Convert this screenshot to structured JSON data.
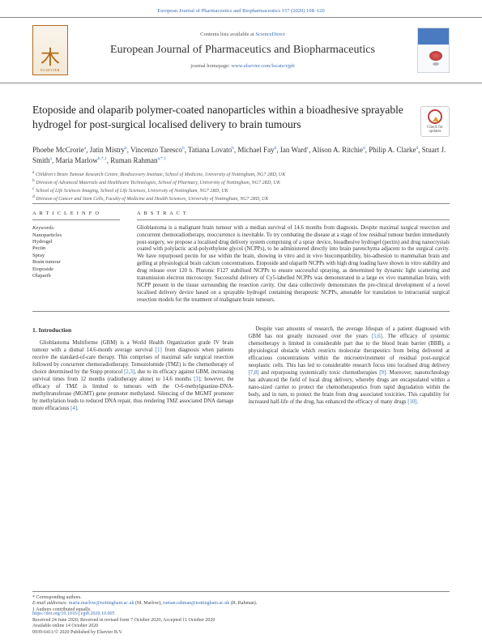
{
  "header_citation": "European Journal of Pharmaceutics and Biopharmaceutics 157 (2020) 108–120",
  "publisher_name": "ELSEVIER",
  "contents_prefix": "Contents lists available at ",
  "contents_link": "ScienceDirect",
  "journal_title": "European Journal of Pharmaceutics and Biopharmaceutics",
  "homepage_prefix": "journal homepage: ",
  "homepage_link": "www.elsevier.com/locate/ejpb",
  "updates_label": "Check for updates",
  "article_title": "Etoposide and olaparib polymer-coated nanoparticles within a bioadhesive sprayable hydrogel for post-surgical localised delivery to brain tumours",
  "authors_html": [
    {
      "name": "Phoebe McCrorie",
      "sup": "a"
    },
    {
      "name": "Jatin Mistry",
      "sup": "b"
    },
    {
      "name": "Vincenzo Taresco",
      "sup": "b"
    },
    {
      "name": "Tatiana Lovato",
      "sup": "b"
    },
    {
      "name": "Michael Fay",
      "sup": "b"
    },
    {
      "name": "Ian Ward",
      "sup": "c"
    },
    {
      "name": "Alison A. Ritchie",
      "sup": "d"
    },
    {
      "name": "Philip A. Clarke",
      "sup": "d"
    },
    {
      "name": "Stuart J. Smith",
      "sup": "a"
    },
    {
      "name": "Maria Marlow",
      "sup": "b,*,1"
    },
    {
      "name": "Ruman Rahman",
      "sup": "a,*,1"
    }
  ],
  "affiliations": [
    {
      "sup": "a",
      "text": "Children's Brain Tumour Research Centre, Biodiscovery Institute, School of Medicine, University of Nottingham, NG7 2RD, UK"
    },
    {
      "sup": "b",
      "text": "Division of Advanced Materials and Healthcare Technologies, School of Pharmacy, University of Nottingham, NG7 2RD, UK"
    },
    {
      "sup": "c",
      "text": "School of Life Sciences Imaging, School of Life Sciences, University of Nottingham, NG7 2RD, UK"
    },
    {
      "sup": "d",
      "text": "Division of Cancer and Stem Cells, Faculty of Medicine and Health Sciences, University of Nottingham, NG7 2RD, UK"
    }
  ],
  "info_head": "A R T I C L E  I N F O",
  "abs_head": "A B S T R A C T",
  "keywords_label": "Keywords:",
  "keywords": [
    "Nanoparticles",
    "Hydrogel",
    "Pectin",
    "Spray",
    "Brain tumour",
    "Etoposide",
    "Olaparib"
  ],
  "abstract": "Glioblastoma is a malignant brain tumour with a median survival of 14.6 months from diagnosis. Despite maximal surgical resection and concurrent chemoradiotherapy, reoccurrence is inevitable. To try combating the disease at a stage of low residual tumour burden immediately post-surgery, we propose a localised drug delivery system comprising of a spray device, bioadhesive hydrogel (pectin) and drug nanocrystals coated with polylactic acid-polyethylene glycol (NCPPs), to be administered directly into brain parenchyma adjacent to the surgical cavity. We have repurposed pectin for use within the brain, showing in vitro and in vivo biocompatibility, bio-adhesion to mammalian brain and gelling at physiological brain calcium concentrations. Etoposide and olaparib NCPPs with high drug loading have shown in vitro stability and drug release over 120 h. Pluronic F127 stabilised NCPPs to ensure successful spraying, as determined by dynamic light scattering and transmission electron microscopy. Successful delivery of Cy5-labelled NCPPs was demonstrated in a large ex vivo mammalian brain, with NCPP present in the tissue surrounding the resection cavity. Our data collectively demonstrates the pre-clinical development of a novel localised delivery device based on a sprayable hydrogel containing therapeutic NCPPs, amenable for translation to intracranial surgical resection models for the treatment of malignant brain tumours.",
  "section_head": "1. Introduction",
  "intro_left": "Glioblastoma Multiforme (GBM) is a World Health Organization grade IV brain tumour with a dismal 14.6-month average survival [1] from diagnosis when patients receive the standard-of-care therapy. This comprises of maximal safe surgical resection followed by concurrent chemoradiotherapy. Temozolomide (TMZ) is the chemotherapy of choice determined by the Stupp protocol [2,3], due to its efficacy against GBM, increasing survival times from 12 months (radiotherapy alone) to 14.6 months [3]; however, the efficacy of TMZ is limited to tumours with the O-6-methylguanine-DNA-methyltransferase (MGMT) gene promoter methylated. Silencing of the MGMT promoter by methylation leads to reduced DNA repair, thus rendering TMZ associated DNA damage more efficacious [4].",
  "intro_right": "Despite vast amounts of research, the average lifespan of a patient diagnosed with GBM has not greatly increased over the years [5,6]. The efficacy of systemic chemotherapy is limited in considerable part due to the blood brain barrier (BBB), a physiological obstacle which restricts molecular therapeutics from being delivered at efficacious concentrations within the microenvironment of residual post-surgical neoplastic cells. This has led to considerable research focus into localised drug delivery [7,8] and repurposing systemically toxic chemotherapies [9]. Moreover, nanotechnology has advanced the field of local drug delivery, whereby drugs are encapsulated within a nano-sized carrier to protect the chemotherapeutics from rapid degradation within the body, and in turn, to protect the brain from drug associated toxicities. This capability for increased half-life of the drug, has enhanced the efficacy of many drugs [10].",
  "corresponding_note": "* Corresponding authors.",
  "email_label": "E-mail addresses: ",
  "emails": [
    {
      "addr": "maria.marlow@nottingham.ac.uk",
      "who": "(M. Marlow)"
    },
    {
      "addr": "ruman.rahman@nottingham.ac.uk",
      "who": "(R. Rahman)"
    }
  ],
  "equal_note": "1 Authors contributed equally.",
  "doi_link": "https://doi.org/10.1016/j.ejpb.2020.10.005",
  "received_line": "Received 24 June 2020; Received in revised form 7 October 2020; Accepted 11 October 2020",
  "available_line": "Available online 14 October 2020",
  "issn_line": "0939-6411/© 2020 Published by Elsevier B.V.",
  "colors": {
    "link": "#3b6fb0",
    "text": "#333333",
    "rule": "#888888",
    "elsevier": "#b06c1e",
    "background": "#ffffff"
  }
}
